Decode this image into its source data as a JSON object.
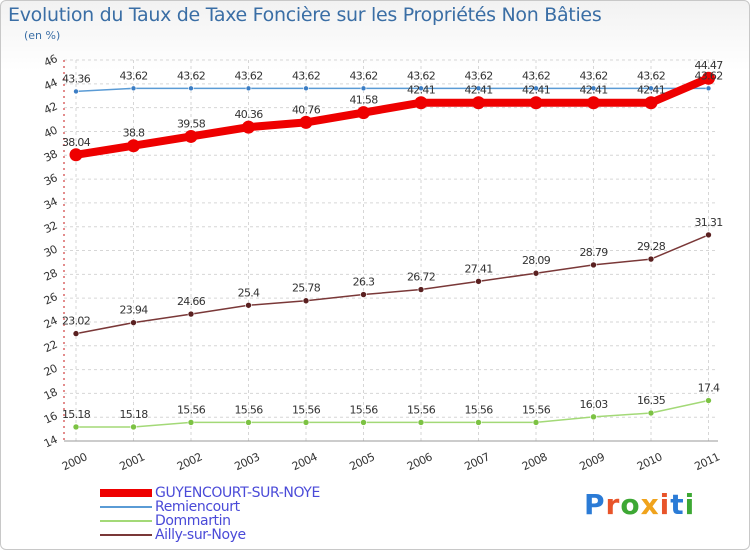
{
  "title": "Evolution du Taux de Taxe Foncière sur les Propriétés Non Bâties",
  "subtitle": "(en %)",
  "logo": {
    "text": "Proxiti",
    "colors": [
      "#2b7bd6",
      "#e8542a",
      "#3da834",
      "#f0a31c",
      "#e8542a",
      "#2b7bd6",
      "#3da834"
    ]
  },
  "chart_data": {
    "type": "line",
    "title": "Evolution du Taux de Taxe Foncière sur les Propriétés Non Bâties",
    "ylabel": "(en %)",
    "xlabel": "",
    "ylim": [
      14,
      46
    ],
    "yticks": [
      14,
      16,
      18,
      20,
      22,
      24,
      26,
      28,
      30,
      32,
      34,
      36,
      38,
      40,
      42,
      44,
      46
    ],
    "categories": [
      "2000",
      "2001",
      "2002",
      "2003",
      "2004",
      "2005",
      "2006",
      "2007",
      "2008",
      "2009",
      "2010",
      "2011"
    ],
    "grid": true,
    "legend_position": "bottom-left",
    "series": [
      {
        "name": "Remiencourt",
        "color": "#5a9bd5",
        "point_color": "#3b7dc4",
        "width": 1.5,
        "marker": 2.5,
        "values": [
          43.36,
          43.62,
          43.62,
          43.62,
          43.62,
          43.62,
          43.62,
          43.62,
          43.62,
          43.62,
          43.62,
          43.62
        ],
        "labels": [
          "43.36",
          "43.62",
          "43.62",
          "43.62",
          "43.62",
          "43.62",
          "43.62",
          "43.62",
          "43.62",
          "43.62",
          "43.62",
          "43.62"
        ]
      },
      {
        "name": "Dommartin",
        "color": "#a3d977",
        "point_color": "#7cc243",
        "width": 1.5,
        "marker": 3,
        "values": [
          15.18,
          15.18,
          15.56,
          15.56,
          15.56,
          15.56,
          15.56,
          15.56,
          15.56,
          16.03,
          16.35,
          17.4
        ],
        "labels": [
          "15.18",
          "15.18",
          "15.56",
          "15.56",
          "15.56",
          "15.56",
          "15.56",
          "15.56",
          "15.56",
          "16.03",
          "16.35",
          "17.4"
        ]
      },
      {
        "name": "Ailly-sur-Noye",
        "color": "#7a3838",
        "point_color": "#5a2020",
        "width": 1.5,
        "marker": 3,
        "values": [
          23.02,
          23.94,
          24.66,
          25.4,
          25.78,
          26.3,
          26.72,
          27.41,
          28.09,
          28.79,
          29.28,
          31.31
        ],
        "labels": [
          "23.02",
          "23.94",
          "24.66",
          "25.4",
          "25.78",
          "26.3",
          "26.72",
          "27.41",
          "28.09",
          "28.79",
          "29.28",
          "31.31"
        ]
      },
      {
        "name": "GUYENCOURT-SUR-NOYE",
        "color": "#ee0000",
        "point_color": "#ee0000",
        "width": 8,
        "marker": 6.5,
        "values": [
          38.04,
          38.8,
          39.58,
          40.36,
          40.76,
          41.58,
          42.41,
          42.41,
          42.41,
          42.41,
          42.41,
          44.47
        ],
        "labels": [
          "38.04",
          "38.8",
          "39.58",
          "40.36",
          "40.76",
          "41.58",
          "42.41",
          "42.41",
          "42.41",
          "42.41",
          "42.41",
          "44.47"
        ]
      }
    ]
  },
  "legend": [
    {
      "name": "GUYENCOURT-SUR-NOYE",
      "color": "#ee0000",
      "text_color": "#4a4ad8"
    },
    {
      "name": "Remiencourt",
      "color": "#5a9bd5",
      "text_color": "#4a4ad8"
    },
    {
      "name": "Dommartin",
      "color": "#a3d977",
      "text_color": "#4a4ad8"
    },
    {
      "name": "Ailly-sur-Noye",
      "color": "#7a3838",
      "text_color": "#4a4ad8"
    }
  ]
}
